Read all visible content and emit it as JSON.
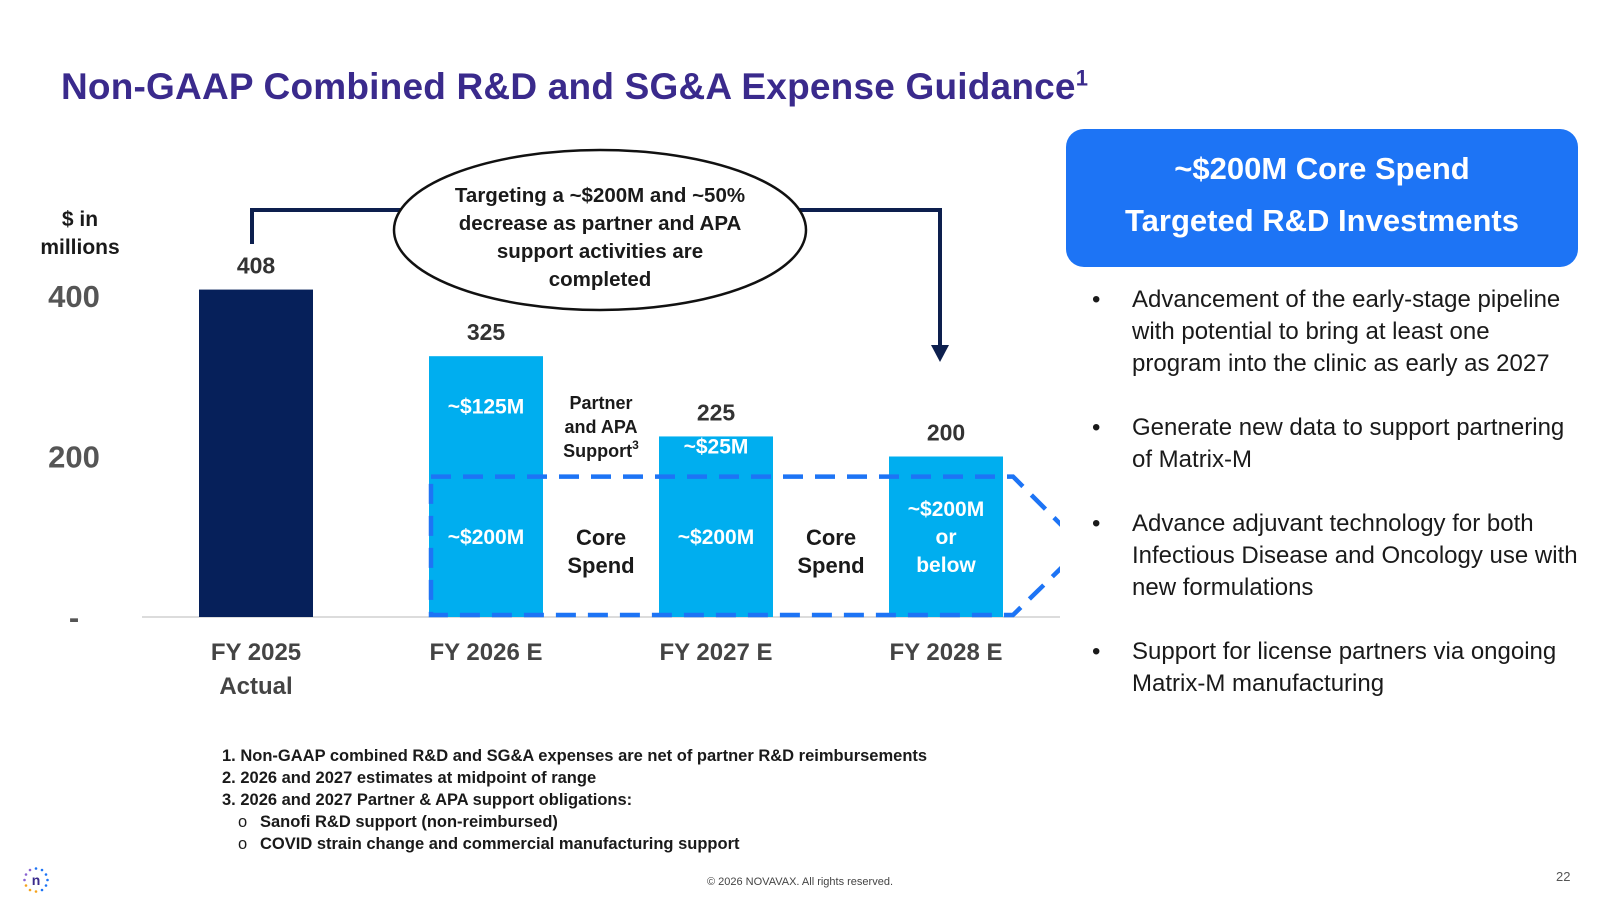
{
  "slide": {
    "title": "Non-GAAP Combined R&D and SG&A Expense Guidance",
    "title_sup": "1",
    "unit_label": [
      "$ in",
      "millions"
    ],
    "callout": [
      "Targeting a ~$200M and ~50%",
      "decrease as partner and APA",
      "support activities are",
      "completed"
    ],
    "panel": {
      "heading": [
        "~$200M Core Spend",
        "Targeted R&D Investments"
      ],
      "bullets": [
        "Advancement of the early-stage pipeline with potential to bring at least one program into the clinic as early as 2027",
        "Generate new data to support partnering of Matrix-M",
        "Advance adjuvant technology for both Infectious Disease and Oncology use with new formulations",
        "Support for license partners via ongoing Matrix-M manufacturing"
      ],
      "bullet_char": "•"
    },
    "footnotes": [
      "1. Non-GAAP combined R&D and SG&A expenses are net of partner R&D reimbursements",
      "2. 2026 and 2027 estimates at midpoint of range",
      "3. 2026 and 2027 Partner & APA support obligations:"
    ],
    "subnotes": [
      "Sanofi R&D support (non-reimbursed)",
      "COVID strain change and commercial manufacturing support"
    ],
    "subnote_char": "o",
    "copyright": "© 2026 NOVAVAX. All rights reserved.",
    "page_number": "22",
    "logo_letter": "n"
  },
  "colors": {
    "title": "#3a2a8c",
    "actual_bar": "#06205a",
    "estimate_bar": "#00aeef",
    "dashed_box": "#1d74f5",
    "panel": "#1d74f5",
    "arrow": "#0d1f4e"
  },
  "chart_data": {
    "type": "bar",
    "categories": [
      "FY 2025 Actual",
      "FY 2026 E",
      "FY 2027 E",
      "FY 2028 E"
    ],
    "category_lines": [
      [
        "FY 2025",
        "Actual"
      ],
      [
        "FY 2026 E"
      ],
      [
        "FY 2027 E"
      ],
      [
        "FY 2028 E"
      ]
    ],
    "values": [
      408,
      325,
      225,
      200
    ],
    "segments": [
      [],
      [
        {
          "label": "~$200M",
          "value": 200
        },
        {
          "label": "~$125M",
          "value": 125
        }
      ],
      [
        {
          "label": "~$200M",
          "value": 200
        },
        {
          "label": "~$25M",
          "value": 25
        }
      ],
      [
        {
          "label": [
            "~$200M",
            "or",
            "below"
          ],
          "value": 200
        }
      ]
    ],
    "yticks": [
      {
        "value": 0,
        "label": "-"
      },
      {
        "value": 200,
        "label": "200"
      },
      {
        "value": 400,
        "label": "400"
      }
    ],
    "ylim": [
      0,
      450
    ],
    "gap_labels": [
      {
        "after": 1,
        "lines": [
          "Partner",
          "and APA",
          "Support"
        ],
        "sup": "3",
        "level": "top"
      },
      {
        "after": 1,
        "lines": [
          "Core",
          "Spend"
        ],
        "level": "core"
      },
      {
        "after": 2,
        "lines": [
          "Core",
          "Spend"
        ],
        "level": "core"
      }
    ],
    "core_spend_level": 175
  }
}
